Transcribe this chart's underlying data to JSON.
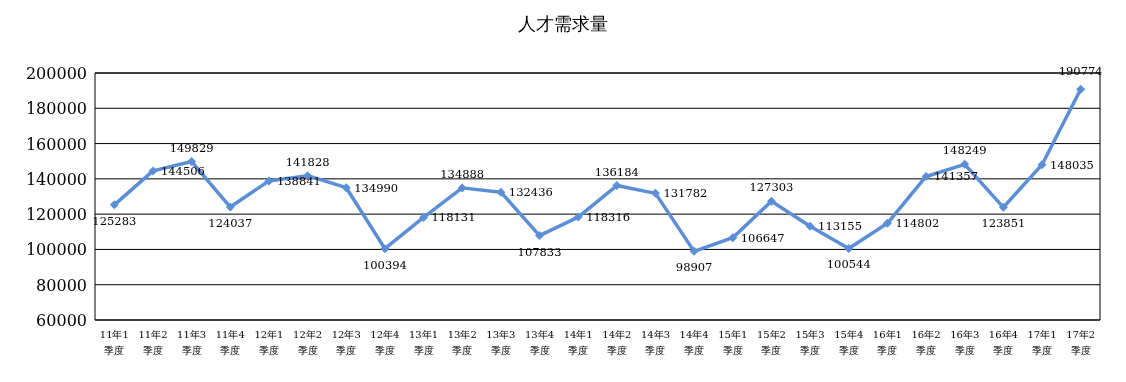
{
  "chart_data": {
    "type": "line",
    "title": "人才需求量",
    "categories": [
      "11年1季度",
      "11年2季度",
      "11年3季度",
      "11年4季度",
      "12年1季度",
      "12年2季度",
      "12年3季度",
      "12年4季度",
      "13年1季度",
      "13年2季度",
      "13年3季度",
      "13年4季度",
      "14年1季度",
      "14年2季度",
      "14年3季度",
      "14年4季度",
      "15年1季度",
      "15年2季度",
      "15年3季度",
      "15年4季度",
      "16年1季度",
      "16年2季度",
      "16年3季度",
      "16年4季度",
      "17年1季度",
      "17年2季度"
    ],
    "series": [
      {
        "color": "#5b8ed6",
        "values": [
          125283,
          144506,
          149829,
          124037,
          138841,
          141828,
          134990,
          100394,
          118131,
          134888,
          132436,
          107833,
          118316,
          136184,
          131782,
          98907,
          106647,
          127303,
          113155,
          100544,
          114802,
          141357,
          148249,
          123851,
          148035,
          190774
        ]
      }
    ],
    "ylim": [
      60000,
      200000
    ],
    "yticks": [
      60000,
      80000,
      100000,
      120000,
      140000,
      160000,
      180000,
      200000
    ],
    "grid": "y",
    "marker": "diamond",
    "line_style": "solid",
    "data_labels": true
  }
}
